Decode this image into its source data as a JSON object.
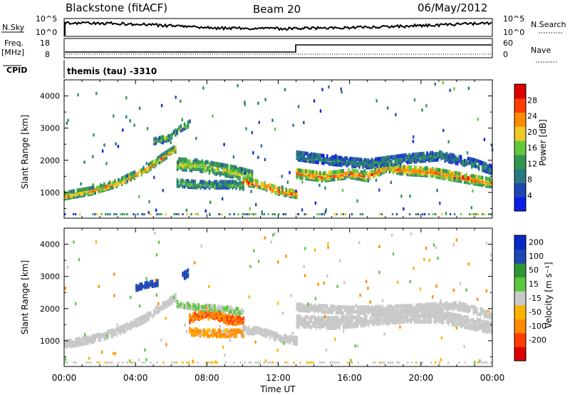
{
  "header": {
    "station": "Blackstone (fitACF)",
    "beam": "Beam 20",
    "date": "06/May/2012"
  },
  "param_panels": {
    "nsky_label": "N.Sky",
    "nsky_ticks": [
      "10^5",
      "10^0"
    ],
    "nsearch_label": "N.Search",
    "nsearch_ticks": [
      "10^5",
      "10^0"
    ],
    "freq_label": "Freq.",
    "freq_unit": "[MHz]",
    "freq_ticks": [
      "18",
      "8"
    ],
    "nave_label": "Nave",
    "nave_ticks": [
      "60",
      "0"
    ],
    "cpid_label": "CPID",
    "cpid_value": "themis (tau) -3310"
  },
  "x_axis": {
    "label": "Time UT",
    "ticks": [
      "00:00",
      "04:00",
      "08:00",
      "12:00",
      "16:00",
      "20:00",
      "00:00"
    ]
  },
  "power_colorbar": {
    "title": "Power [dB]",
    "ticks": [
      "28",
      "24",
      "20",
      "16",
      "12",
      "8",
      "4"
    ]
  },
  "velocity_colorbar": {
    "title": "Velocity [m s⁻¹]",
    "ticks": [
      "200",
      "100",
      "50",
      "15",
      "-15",
      "-50",
      "-100",
      "-200"
    ]
  },
  "chart_data": [
    {
      "type": "heatmap",
      "name": "power",
      "xlabel": "Time UT",
      "ylabel": "Slant Range [km]",
      "xlim": [
        0,
        24
      ],
      "ylim": [
        200,
        4500
      ],
      "yticks": [
        1000,
        2000,
        3000,
        4000
      ],
      "colorbar_range": [
        0,
        32
      ],
      "colors": [
        "#0a1ee6",
        "#1e46b4",
        "#287882",
        "#329650",
        "#64c83c",
        "#f0c828",
        "#ff8c00",
        "#ff3c00",
        "#dc0000"
      ],
      "features": [
        {
          "t": [
            0.0,
            1.5,
            3.0,
            4.5,
            5.5,
            6.2
          ],
          "range": [
            900,
            1050,
            1300,
            1700,
            2100,
            2350
          ],
          "width": 180,
          "power": 22
        },
        {
          "t": [
            6.3,
            7.5,
            8.5,
            9.5,
            10.5
          ],
          "range": [
            1900,
            1850,
            1750,
            1650,
            1500
          ],
          "width": 350,
          "power": 18
        },
        {
          "t": [
            6.3,
            7.5,
            8.5,
            9.5,
            10.0
          ],
          "range": [
            1300,
            1250,
            1250,
            1250,
            1200
          ],
          "width": 200,
          "power": 14
        },
        {
          "t": [
            10.0,
            11.0,
            12.0,
            13.0
          ],
          "range": [
            1350,
            1250,
            1050,
            950
          ],
          "width": 200,
          "power": 26
        },
        {
          "t": [
            13.0,
            14.5,
            16.0,
            17.0,
            18.0,
            19.0,
            20.5,
            22.0,
            24.0
          ],
          "range": [
            1600,
            1500,
            1600,
            1500,
            1800,
            1700,
            1650,
            1500,
            1300
          ],
          "width": 260,
          "power": 24
        },
        {
          "t": [
            13.0,
            15.0,
            17.0,
            19.0,
            21.0,
            23.0,
            24.0
          ],
          "range": [
            2150,
            2000,
            1900,
            2050,
            2150,
            1900,
            1700
          ],
          "width": 250,
          "power": 10
        },
        {
          "t": [
            5.0,
            5.8,
            6.5,
            7.0
          ],
          "range": [
            2600,
            2700,
            3000,
            3150
          ],
          "width": 150,
          "power": 16
        }
      ]
    },
    {
      "type": "heatmap",
      "name": "velocity",
      "xlabel": "Time UT",
      "ylabel": "Slant Range [km]",
      "xlim": [
        0,
        24
      ],
      "ylim": [
        200,
        4500
      ],
      "yticks": [
        1000,
        2000,
        3000,
        4000
      ],
      "colorbar_range": [
        -200,
        200
      ],
      "features": [
        {
          "t": [
            0.0,
            1.5,
            3.0,
            4.5,
            5.5,
            6.2
          ],
          "range": [
            900,
            1050,
            1300,
            1700,
            2100,
            2350
          ],
          "width": 200,
          "velocity": 0
        },
        {
          "t": [
            13.0,
            15.0,
            17.0,
            19.0,
            21.0,
            24.0
          ],
          "range": [
            1600,
            1550,
            1650,
            1750,
            1750,
            1400
          ],
          "width": 320,
          "velocity": 0
        },
        {
          "t": [
            13.0,
            16.0,
            19.0,
            22.0,
            24.0
          ],
          "range": [
            2050,
            1950,
            2000,
            2100,
            1800
          ],
          "width": 200,
          "velocity": 0
        },
        {
          "t": [
            7.0,
            8.0,
            9.0,
            10.0
          ],
          "range": [
            1700,
            1900,
            1700,
            1600
          ],
          "width": 250,
          "velocity": -70
        },
        {
          "t": [
            7.0,
            8.0,
            9.0,
            10.0
          ],
          "range": [
            1300,
            1250,
            1250,
            1250
          ],
          "width": 220,
          "velocity": -40
        },
        {
          "t": [
            10.0,
            11.0,
            12.0,
            13.0
          ],
          "range": [
            1350,
            1300,
            1100,
            1000
          ],
          "width": 200,
          "velocity": 0
        },
        {
          "t": [
            4.0,
            4.6,
            5.2
          ],
          "range": [
            2650,
            2750,
            2800
          ],
          "width": 150,
          "velocity": 180
        },
        {
          "t": [
            6.6,
            6.9
          ],
          "range": [
            3000,
            3100
          ],
          "width": 180,
          "velocity": 200
        },
        {
          "t": [
            6.3,
            7.5,
            9.0,
            10.0
          ],
          "range": [
            2150,
            2050,
            2000,
            1900
          ],
          "width": 160,
          "velocity": 30
        }
      ]
    }
  ]
}
